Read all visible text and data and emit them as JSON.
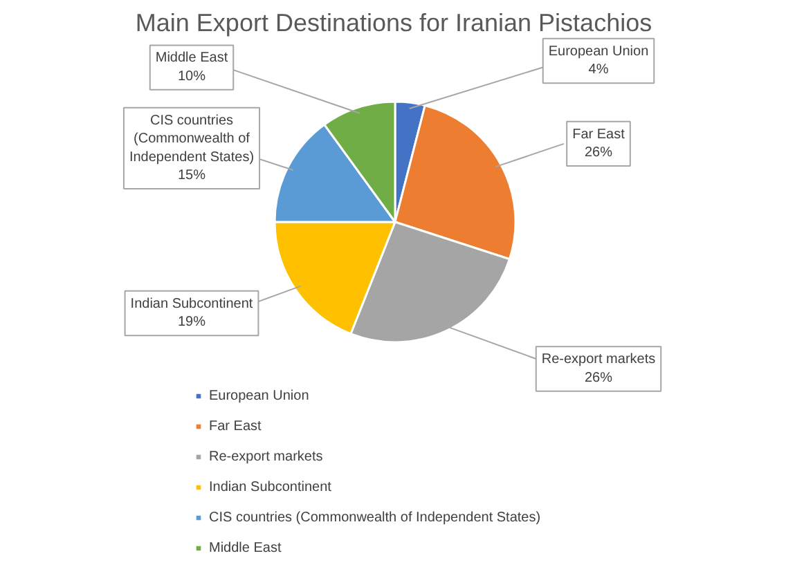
{
  "chart_data": {
    "type": "pie",
    "title": "Main Export Destinations for Iranian Pistachios",
    "categories": [
      "European Union",
      "Far East",
      "Re-export markets",
      "Indian Subcontinent",
      "CIS countries (Commonwealth of Independent States)",
      "Middle East"
    ],
    "values": [
      4,
      26,
      26,
      19,
      15,
      10
    ],
    "value_labels": [
      "4%",
      "26%",
      "26%",
      "19%",
      "15%",
      "10%"
    ],
    "colors": [
      "#4472c4",
      "#ed7d31",
      "#a5a5a5",
      "#ffc000",
      "#5b9bd5",
      "#70ad47"
    ],
    "legend": "bottom"
  }
}
